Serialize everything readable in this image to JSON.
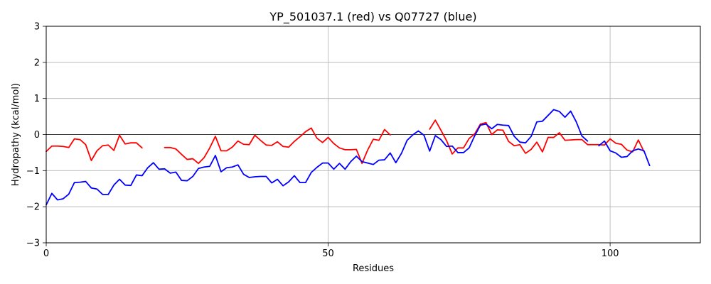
{
  "chart_data": {
    "type": "line",
    "title": "YP_501037.1 (red) vs Q07727 (blue)",
    "xlabel": "Residues",
    "ylabel": "Hydropathy (kcal/mol)",
    "xlim": [
      0,
      116
    ],
    "ylim": [
      -3,
      3
    ],
    "xticks": [
      0,
      50,
      100
    ],
    "yticks": [
      -3,
      -2,
      -1,
      0,
      1,
      2,
      3
    ],
    "grid": true,
    "zero_line": true,
    "series": [
      {
        "color": "#ff0000",
        "segments": [
          [
            [
              0,
              -0.47
            ],
            [
              1,
              -0.32
            ],
            [
              2,
              -0.32
            ],
            [
              3,
              -0.33
            ],
            [
              4,
              -0.36
            ],
            [
              5,
              -0.12
            ],
            [
              6,
              -0.14
            ],
            [
              7,
              -0.28
            ],
            [
              8,
              -0.72
            ],
            [
              9,
              -0.45
            ],
            [
              10,
              -0.31
            ],
            [
              11,
              -0.29
            ],
            [
              12,
              -0.44
            ],
            [
              13,
              -0.02
            ],
            [
              14,
              -0.26
            ],
            [
              15,
              -0.23
            ],
            [
              16,
              -0.23
            ],
            [
              17,
              -0.37
            ]
          ],
          [
            [
              21,
              -0.36
            ],
            [
              22,
              -0.36
            ],
            [
              23,
              -0.4
            ],
            [
              24,
              -0.55
            ],
            [
              25,
              -0.69
            ],
            [
              26,
              -0.67
            ],
            [
              27,
              -0.8
            ],
            [
              28,
              -0.64
            ],
            [
              29,
              -0.37
            ],
            [
              30,
              -0.05
            ],
            [
              31,
              -0.45
            ],
            [
              32,
              -0.45
            ],
            [
              33,
              -0.35
            ],
            [
              34,
              -0.18
            ],
            [
              35,
              -0.27
            ],
            [
              36,
              -0.28
            ],
            [
              37,
              -0.02
            ],
            [
              38,
              -0.16
            ],
            [
              39,
              -0.29
            ],
            [
              40,
              -0.3
            ],
            [
              41,
              -0.2
            ],
            [
              42,
              -0.33
            ],
            [
              43,
              -0.35
            ],
            [
              44,
              -0.19
            ],
            [
              45,
              -0.06
            ],
            [
              46,
              0.08
            ],
            [
              47,
              0.18
            ],
            [
              48,
              -0.1
            ],
            [
              49,
              -0.22
            ],
            [
              50,
              -0.08
            ],
            [
              51,
              -0.25
            ],
            [
              52,
              -0.37
            ],
            [
              53,
              -0.42
            ],
            [
              54,
              -0.42
            ],
            [
              55,
              -0.41
            ],
            [
              56,
              -0.8
            ],
            [
              57,
              -0.43
            ],
            [
              58,
              -0.13
            ],
            [
              59,
              -0.16
            ],
            [
              60,
              0.14
            ],
            [
              61,
              -0.01
            ]
          ],
          [
            [
              68,
              0.15
            ],
            [
              69,
              0.4
            ],
            [
              70,
              0.12
            ],
            [
              71,
              -0.17
            ],
            [
              72,
              -0.54
            ],
            [
              73,
              -0.37
            ],
            [
              74,
              -0.37
            ],
            [
              75,
              -0.11
            ],
            [
              76,
              0.02
            ],
            [
              77,
              0.29
            ],
            [
              78,
              0.33
            ],
            [
              79,
              0.0
            ],
            [
              80,
              0.13
            ],
            [
              81,
              0.12
            ],
            [
              82,
              -0.19
            ],
            [
              83,
              -0.31
            ],
            [
              84,
              -0.28
            ],
            [
              85,
              -0.52
            ],
            [
              86,
              -0.41
            ],
            [
              87,
              -0.21
            ],
            [
              88,
              -0.48
            ],
            [
              89,
              -0.08
            ],
            [
              90,
              -0.08
            ],
            [
              91,
              0.05
            ],
            [
              92,
              -0.16
            ],
            [
              93,
              -0.15
            ],
            [
              94,
              -0.14
            ],
            [
              95,
              -0.14
            ],
            [
              96,
              -0.28
            ],
            [
              97,
              -0.28
            ],
            [
              98,
              -0.28
            ],
            [
              99,
              -0.29
            ],
            [
              100,
              -0.12
            ],
            [
              101,
              -0.24
            ],
            [
              102,
              -0.27
            ],
            [
              103,
              -0.43
            ],
            [
              104,
              -0.48
            ],
            [
              105,
              -0.15
            ],
            [
              106,
              -0.47
            ]
          ]
        ]
      },
      {
        "color": "#0000ff",
        "segments": [
          [
            [
              0,
              -1.95
            ],
            [
              1,
              -1.63
            ],
            [
              2,
              -1.81
            ],
            [
              3,
              -1.78
            ],
            [
              4,
              -1.65
            ],
            [
              5,
              -1.33
            ],
            [
              6,
              -1.32
            ],
            [
              7,
              -1.3
            ],
            [
              8,
              -1.48
            ],
            [
              9,
              -1.51
            ],
            [
              10,
              -1.66
            ],
            [
              11,
              -1.66
            ],
            [
              12,
              -1.4
            ],
            [
              13,
              -1.24
            ],
            [
              14,
              -1.4
            ],
            [
              15,
              -1.41
            ],
            [
              16,
              -1.12
            ],
            [
              17,
              -1.14
            ],
            [
              18,
              -0.92
            ],
            [
              19,
              -0.78
            ],
            [
              20,
              -0.96
            ],
            [
              21,
              -0.95
            ],
            [
              22,
              -1.07
            ],
            [
              23,
              -1.04
            ],
            [
              24,
              -1.27
            ],
            [
              25,
              -1.28
            ],
            [
              26,
              -1.16
            ],
            [
              27,
              -0.94
            ],
            [
              28,
              -0.9
            ],
            [
              29,
              -0.88
            ],
            [
              30,
              -0.58
            ],
            [
              31,
              -1.03
            ],
            [
              32,
              -0.92
            ],
            [
              33,
              -0.9
            ],
            [
              34,
              -0.84
            ],
            [
              35,
              -1.1
            ],
            [
              36,
              -1.19
            ],
            [
              37,
              -1.17
            ],
            [
              38,
              -1.16
            ],
            [
              39,
              -1.16
            ],
            [
              40,
              -1.34
            ],
            [
              41,
              -1.24
            ],
            [
              42,
              -1.42
            ],
            [
              43,
              -1.31
            ],
            [
              44,
              -1.14
            ],
            [
              45,
              -1.33
            ],
            [
              46,
              -1.33
            ],
            [
              47,
              -1.05
            ],
            [
              48,
              -0.91
            ],
            [
              49,
              -0.79
            ],
            [
              50,
              -0.79
            ],
            [
              51,
              -0.96
            ],
            [
              52,
              -0.8
            ],
            [
              53,
              -0.96
            ],
            [
              54,
              -0.75
            ],
            [
              55,
              -0.6
            ],
            [
              56,
              -0.75
            ],
            [
              57,
              -0.79
            ],
            [
              58,
              -0.83
            ],
            [
              59,
              -0.71
            ],
            [
              60,
              -0.7
            ],
            [
              61,
              -0.51
            ],
            [
              62,
              -0.78
            ],
            [
              63,
              -0.52
            ],
            [
              64,
              -0.16
            ],
            [
              65,
              -0.01
            ],
            [
              66,
              0.1
            ],
            [
              67,
              -0.02
            ],
            [
              68,
              -0.46
            ],
            [
              69,
              -0.03
            ],
            [
              70,
              -0.14
            ],
            [
              71,
              -0.33
            ],
            [
              72,
              -0.32
            ],
            [
              73,
              -0.5
            ],
            [
              74,
              -0.5
            ],
            [
              75,
              -0.37
            ],
            [
              76,
              -0.03
            ],
            [
              77,
              0.26
            ],
            [
              78,
              0.29
            ],
            [
              79,
              0.16
            ],
            [
              80,
              0.28
            ],
            [
              81,
              0.26
            ],
            [
              82,
              0.25
            ],
            [
              83,
              -0.05
            ],
            [
              84,
              -0.21
            ],
            [
              85,
              -0.23
            ],
            [
              86,
              -0.05
            ],
            [
              87,
              0.35
            ],
            [
              88,
              0.37
            ],
            [
              89,
              0.53
            ],
            [
              90,
              0.69
            ],
            [
              91,
              0.64
            ],
            [
              92,
              0.48
            ],
            [
              93,
              0.65
            ],
            [
              94,
              0.35
            ],
            [
              95,
              -0.04
            ],
            [
              96,
              -0.18
            ]
          ],
          [
            [
              98,
              -0.31
            ],
            [
              99,
              -0.18
            ],
            [
              100,
              -0.45
            ],
            [
              101,
              -0.51
            ],
            [
              102,
              -0.63
            ],
            [
              103,
              -0.61
            ],
            [
              104,
              -0.45
            ],
            [
              105,
              -0.4
            ],
            [
              106,
              -0.45
            ],
            [
              107,
              -0.86
            ]
          ]
        ]
      }
    ]
  }
}
